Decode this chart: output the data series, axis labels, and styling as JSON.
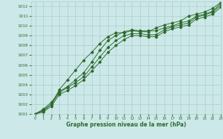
{
  "xlabel": "Graphe pression niveau de la mer (hPa)",
  "xlim": [
    -0.5,
    23
  ],
  "ylim": [
    1001,
    1012.5
  ],
  "yticks": [
    1001,
    1002,
    1003,
    1004,
    1005,
    1006,
    1007,
    1008,
    1009,
    1010,
    1011,
    1012
  ],
  "xticks": [
    0,
    1,
    2,
    3,
    4,
    5,
    6,
    7,
    8,
    9,
    10,
    11,
    12,
    13,
    14,
    15,
    16,
    17,
    18,
    19,
    20,
    21,
    22,
    23
  ],
  "bg_color": "#cce8e8",
  "grid_color": "#aacccc",
  "line_color": "#2d6a2d",
  "line1": [
    1001.0,
    1001.5,
    1002.2,
    1003.3,
    1003.8,
    1004.5,
    1005.2,
    1006.3,
    1007.5,
    1008.5,
    1009.0,
    1009.4,
    1009.6,
    1009.5,
    1009.5,
    1009.5,
    1009.8,
    1010.0,
    1010.3,
    1010.5,
    1011.0,
    1011.2,
    1011.5,
    1012.3
  ],
  "line2": [
    1001.0,
    1001.4,
    1002.0,
    1003.5,
    1004.5,
    1005.5,
    1006.5,
    1007.3,
    1008.2,
    1008.9,
    1009.3,
    1009.3,
    1009.5,
    1009.4,
    1009.4,
    1009.8,
    1010.1,
    1010.3,
    1010.5,
    1011.0,
    1011.2,
    1011.4,
    1011.8,
    1012.4
  ],
  "line3": [
    1001.0,
    1001.3,
    1002.0,
    1003.2,
    1003.7,
    1004.2,
    1004.8,
    1005.8,
    1006.8,
    1007.8,
    1008.5,
    1009.0,
    1009.2,
    1009.2,
    1009.1,
    1009.1,
    1009.6,
    1009.9,
    1010.1,
    1010.3,
    1010.9,
    1011.1,
    1011.4,
    1012.1
  ],
  "line4": [
    1001.0,
    1001.2,
    1001.8,
    1003.0,
    1003.4,
    1003.9,
    1004.5,
    1005.4,
    1006.3,
    1007.3,
    1008.0,
    1008.6,
    1009.0,
    1009.0,
    1008.9,
    1008.9,
    1009.4,
    1009.7,
    1009.9,
    1010.1,
    1010.7,
    1010.9,
    1011.2,
    1011.9
  ]
}
